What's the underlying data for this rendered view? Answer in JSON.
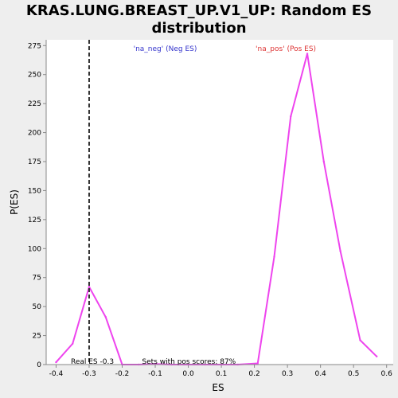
{
  "chart_data": {
    "type": "line",
    "title_line1": "KRAS.LUNG.BREAST_UP.V1_UP: Random ES",
    "title_line2": "distribution",
    "xlabel": "ES",
    "ylabel": "P(ES)",
    "xlim": [
      -0.43,
      0.62
    ],
    "ylim": [
      0,
      280
    ],
    "x_ticks": [
      "-0.4",
      "-0.3",
      "-0.2",
      "-0.1",
      "0.0",
      "0.1",
      "0.2",
      "0.3",
      "0.4",
      "0.5",
      "0.6"
    ],
    "x_tick_values": [
      -0.4,
      -0.3,
      -0.2,
      -0.1,
      0.0,
      0.1,
      0.2,
      0.3,
      0.4,
      0.5,
      0.6
    ],
    "y_ticks": [
      "0",
      "25",
      "50",
      "75",
      "100",
      "125",
      "150",
      "175",
      "200",
      "225",
      "250",
      "275"
    ],
    "y_tick_values": [
      0,
      25,
      50,
      75,
      100,
      125,
      150,
      175,
      200,
      225,
      250,
      275
    ],
    "legend": [
      {
        "label": "'na_neg' (Neg ES)",
        "color": "#3333cc"
      },
      {
        "label": "'na_pos' (Pos ES)",
        "color": "#dd3333"
      }
    ],
    "series": [
      {
        "color": "#ee44ee",
        "x": [
          -0.4,
          -0.35,
          -0.3,
          -0.25,
          -0.2,
          -0.15,
          -0.1,
          -0.05,
          0.0,
          0.05,
          0.1,
          0.15,
          0.21,
          0.26,
          0.31,
          0.36,
          0.41,
          0.46,
          0.52,
          0.57
        ],
        "y": [
          2,
          18,
          67,
          41,
          0,
          0,
          0.5,
          0,
          0,
          0,
          0,
          0,
          1,
          93,
          214,
          268,
          175,
          98,
          21,
          7
        ]
      }
    ],
    "real_es": {
      "value": -0.3,
      "label": "Real ES -0.3"
    },
    "annotation": "Sets with pos scores: 87%"
  }
}
